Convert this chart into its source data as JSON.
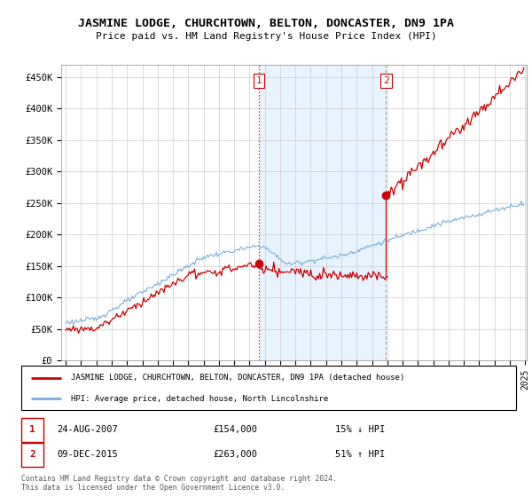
{
  "title": "JASMINE LODGE, CHURCHTOWN, BELTON, DONCASTER, DN9 1PA",
  "subtitle": "Price paid vs. HM Land Registry's House Price Index (HPI)",
  "legend_line1": "JASMINE LODGE, CHURCHTOWN, BELTON, DONCASTER, DN9 1PA (detached house)",
  "legend_line2": "HPI: Average price, detached house, North Lincolnshire",
  "footnote": "Contains HM Land Registry data © Crown copyright and database right 2024.\nThis data is licensed under the Open Government Licence v3.0.",
  "sale1_date": "24-AUG-2007",
  "sale1_price": 154000,
  "sale1_hpi": "15% ↓ HPI",
  "sale1_year": 2007.625,
  "sale2_date": "09-DEC-2015",
  "sale2_price": 263000,
  "sale2_hpi": "51% ↑ HPI",
  "sale2_year": 2015.917,
  "red_color": "#cc0000",
  "blue_color": "#7aaddb",
  "shade_color": "#ddeeff",
  "ylim_min": 0,
  "ylim_max": 470000,
  "yticks": [
    0,
    50000,
    100000,
    150000,
    200000,
    250000,
    300000,
    350000,
    400000,
    450000
  ],
  "ytick_labels": [
    "£0",
    "£50K",
    "£100K",
    "£150K",
    "£200K",
    "£250K",
    "£300K",
    "£350K",
    "£400K",
    "£450K"
  ],
  "x_start_year": 1995,
  "x_end_year": 2025
}
